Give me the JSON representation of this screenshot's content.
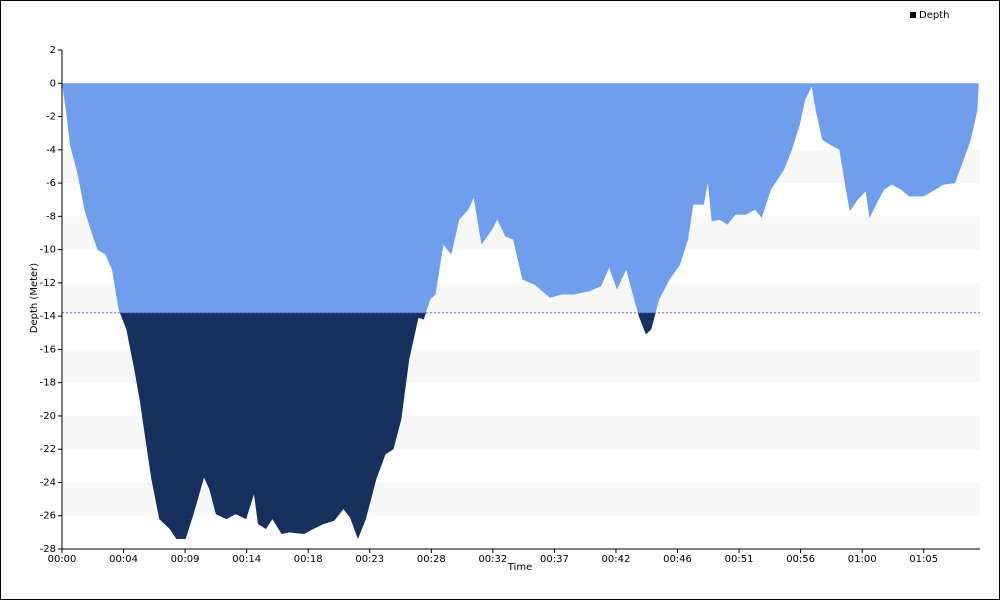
{
  "chart_data": {
    "type": "area",
    "x_label": "Time",
    "y_label": "Depth (Meter)",
    "series": [
      {
        "name": "Depth",
        "color": "#6f9fec",
        "below_color": "#17305e",
        "legend_color": "#000000",
        "x": [
          0,
          0.3,
          0.6,
          1.2,
          1.7,
          2.3,
          2.7,
          3.3,
          3.8,
          4.3,
          4.9,
          5.5,
          5.9,
          6.4,
          6.8,
          7.4,
          8.2,
          8.7,
          9.4,
          10.0,
          10.8,
          11.2,
          11.7,
          12.5,
          13.2,
          14.0,
          14.6,
          14.9,
          15.5,
          16.0,
          16.7,
          17.3,
          18.4,
          19.1,
          19.9,
          20.7,
          21.4,
          21.9,
          22.5,
          23.1,
          23.9,
          24.6,
          25.2,
          25.8,
          26.4,
          27.1,
          27.5,
          28.0,
          28.4,
          29.0,
          29.6,
          30.2,
          30.9,
          31.3,
          31.9,
          32.7,
          33.1,
          33.7,
          34.3,
          35.0,
          35.9,
          37.1,
          38.0,
          38.9,
          40.1,
          41.0,
          41.6,
          42.2,
          42.9,
          43.5,
          43.9,
          44.4,
          44.8,
          45.4,
          46.2,
          47.0,
          47.6,
          48.0,
          48.8,
          49.1,
          49.4,
          50.0,
          50.6,
          51.2,
          52.0,
          52.7,
          53.2,
          53.9,
          54.9,
          55.5,
          56.1,
          56.5,
          57.0,
          57.3,
          57.8,
          58.4,
          59.1,
          59.6,
          59.9,
          60.5,
          61.1,
          61.4,
          61.9,
          62.5,
          63.1,
          63.8,
          64.4,
          65.5,
          66.4,
          67.0,
          67.9,
          68.7,
          69.1,
          69.6,
          69.7
        ],
        "values": [
          0,
          -1.6,
          -3.7,
          -5.5,
          -7.6,
          -9.1,
          -10.0,
          -10.3,
          -11.2,
          -13.6,
          -14.8,
          -17.2,
          -19.0,
          -21.7,
          -23.8,
          -26.2,
          -26.8,
          -27.4,
          -27.4,
          -25.9,
          -23.7,
          -24.4,
          -25.9,
          -26.2,
          -25.9,
          -26.2,
          -24.7,
          -26.5,
          -26.8,
          -26.2,
          -27.1,
          -27.0,
          -27.1,
          -26.8,
          -26.5,
          -26.3,
          -25.6,
          -26.1,
          -27.4,
          -26.2,
          -23.8,
          -22.3,
          -22.0,
          -20.2,
          -16.6,
          -14.1,
          -14.2,
          -13.0,
          -12.7,
          -9.7,
          -10.3,
          -8.2,
          -7.6,
          -6.9,
          -9.7,
          -8.8,
          -8.2,
          -9.2,
          -9.4,
          -11.8,
          -12.1,
          -12.9,
          -12.7,
          -12.7,
          -12.5,
          -12.2,
          -11.1,
          -12.4,
          -11.2,
          -13.0,
          -14.1,
          -15.1,
          -14.8,
          -13.0,
          -11.8,
          -10.9,
          -9.4,
          -7.3,
          -7.3,
          -6.0,
          -8.3,
          -8.2,
          -8.5,
          -7.9,
          -7.9,
          -7.6,
          -8.1,
          -6.4,
          -5.2,
          -4.0,
          -2.5,
          -1.0,
          -0.2,
          -1.6,
          -3.4,
          -3.7,
          -4.0,
          -6.4,
          -7.7,
          -7.0,
          -6.5,
          -8.1,
          -7.3,
          -6.4,
          -6.1,
          -6.4,
          -6.8,
          -6.8,
          -6.4,
          -6.1,
          -6.0,
          -4.3,
          -3.4,
          -1.6,
          0
        ]
      }
    ],
    "threshold": -13.8,
    "threshold_color": "#7b68ee",
    "xlim": [
      0,
      69.8
    ],
    "xticks": [
      {
        "value": 0,
        "label": "00:00"
      },
      {
        "value": 4.68,
        "label": "00:04"
      },
      {
        "value": 9.36,
        "label": "00:09"
      },
      {
        "value": 14.04,
        "label": "00:14"
      },
      {
        "value": 18.72,
        "label": "00:18"
      },
      {
        "value": 23.4,
        "label": "00:23"
      },
      {
        "value": 28.08,
        "label": "00:28"
      },
      {
        "value": 32.76,
        "label": "00:32"
      },
      {
        "value": 37.44,
        "label": "00:37"
      },
      {
        "value": 42.12,
        "label": "00:42"
      },
      {
        "value": 46.8,
        "label": "00:46"
      },
      {
        "value": 51.48,
        "label": "00:51"
      },
      {
        "value": 56.16,
        "label": "00:56"
      },
      {
        "value": 60.84,
        "label": "01:00"
      },
      {
        "value": 65.52,
        "label": "01:05"
      }
    ],
    "ylim": [
      -28,
      2
    ],
    "yticks": [
      -28,
      -26,
      -24,
      -22,
      -20,
      -18,
      -16,
      -14,
      -12,
      -10,
      -8,
      -6,
      -4,
      -2,
      0,
      2
    ],
    "grid": "bands",
    "legend": "top-right"
  }
}
